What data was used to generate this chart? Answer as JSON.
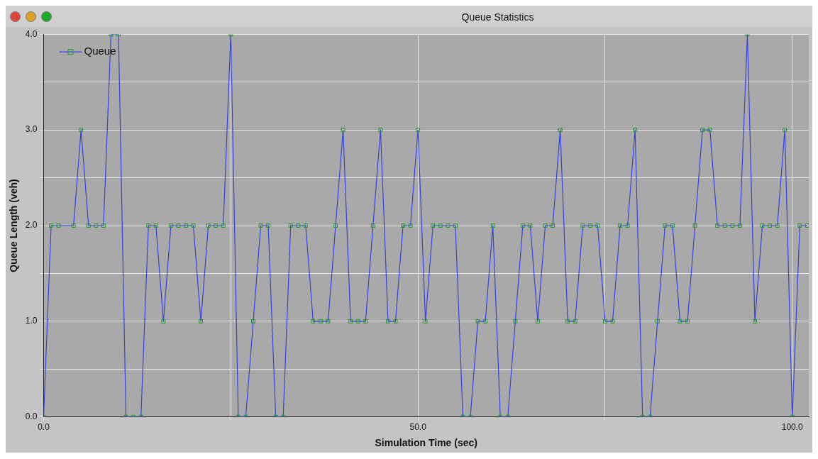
{
  "chart_data": {
    "type": "line",
    "title": "Queue Statistics",
    "xlabel": "Simulation Time (sec)",
    "ylabel": "Queue Length (veh)",
    "xlim": [
      0,
      102.2
    ],
    "ylim": [
      0,
      4
    ],
    "xticks": [
      {
        "value": 0,
        "label": "0.0"
      },
      {
        "value": 25,
        "label": null
      },
      {
        "value": 50,
        "label": "50.0"
      },
      {
        "value": 75,
        "label": null
      },
      {
        "value": 100,
        "label": "100.0"
      }
    ],
    "yticks": [
      {
        "value": 0,
        "label": "0.0"
      },
      {
        "value": 0.5,
        "label": null
      },
      {
        "value": 1,
        "label": "1.0"
      },
      {
        "value": 1.5,
        "label": null
      },
      {
        "value": 2,
        "label": "2.0"
      },
      {
        "value": 2.5,
        "label": null
      },
      {
        "value": 3,
        "label": "3.0"
      },
      {
        "value": 3.5,
        "label": null
      },
      {
        "value": 4,
        "label": "4.0"
      }
    ],
    "grid": true,
    "legend": "top left",
    "marker": "square",
    "line_style": "solid",
    "series": [
      {
        "name": "Queue",
        "color": "#3344dd",
        "x": [
          0,
          1,
          2,
          4,
          5,
          6,
          7,
          8,
          9,
          10,
          11,
          12,
          13,
          14,
          15,
          16,
          17,
          18,
          19,
          20,
          21,
          22,
          23,
          24,
          25,
          26,
          27,
          28,
          29,
          30,
          31,
          32,
          33,
          34,
          35,
          36,
          37,
          38,
          39,
          40,
          41,
          42,
          43,
          44,
          45,
          46,
          47,
          48,
          49,
          50,
          51,
          52,
          53,
          54,
          55,
          56,
          57,
          58,
          59,
          60,
          61,
          62,
          63,
          64,
          65,
          66,
          67,
          68,
          69,
          70,
          71,
          72,
          73,
          74,
          75,
          76,
          77,
          78,
          79,
          80,
          81,
          82,
          83,
          84,
          85,
          86,
          87,
          88,
          89,
          90,
          91,
          92,
          93,
          94,
          95,
          96,
          97,
          98,
          99,
          100,
          101,
          102
        ],
        "values": [
          0,
          2,
          2,
          2,
          3,
          2,
          2,
          2,
          4,
          4,
          0,
          0,
          0,
          2,
          2,
          1,
          2,
          2,
          2,
          2,
          1,
          2,
          2,
          2,
          4,
          0,
          0,
          1,
          2,
          2,
          0,
          0,
          2,
          2,
          2,
          1,
          1,
          1,
          2,
          3,
          1,
          1,
          1,
          2,
          3,
          1,
          1,
          2,
          2,
          3,
          1,
          2,
          2,
          2,
          2,
          0,
          0,
          1,
          1,
          2,
          0,
          0,
          1,
          2,
          2,
          1,
          2,
          2,
          3,
          1,
          1,
          2,
          2,
          2,
          1,
          1,
          2,
          2,
          3,
          0,
          0,
          1,
          2,
          2,
          1,
          1,
          2,
          3,
          3,
          2,
          2,
          2,
          2,
          4,
          1,
          2,
          2,
          2,
          3,
          0,
          2,
          2
        ]
      }
    ]
  }
}
